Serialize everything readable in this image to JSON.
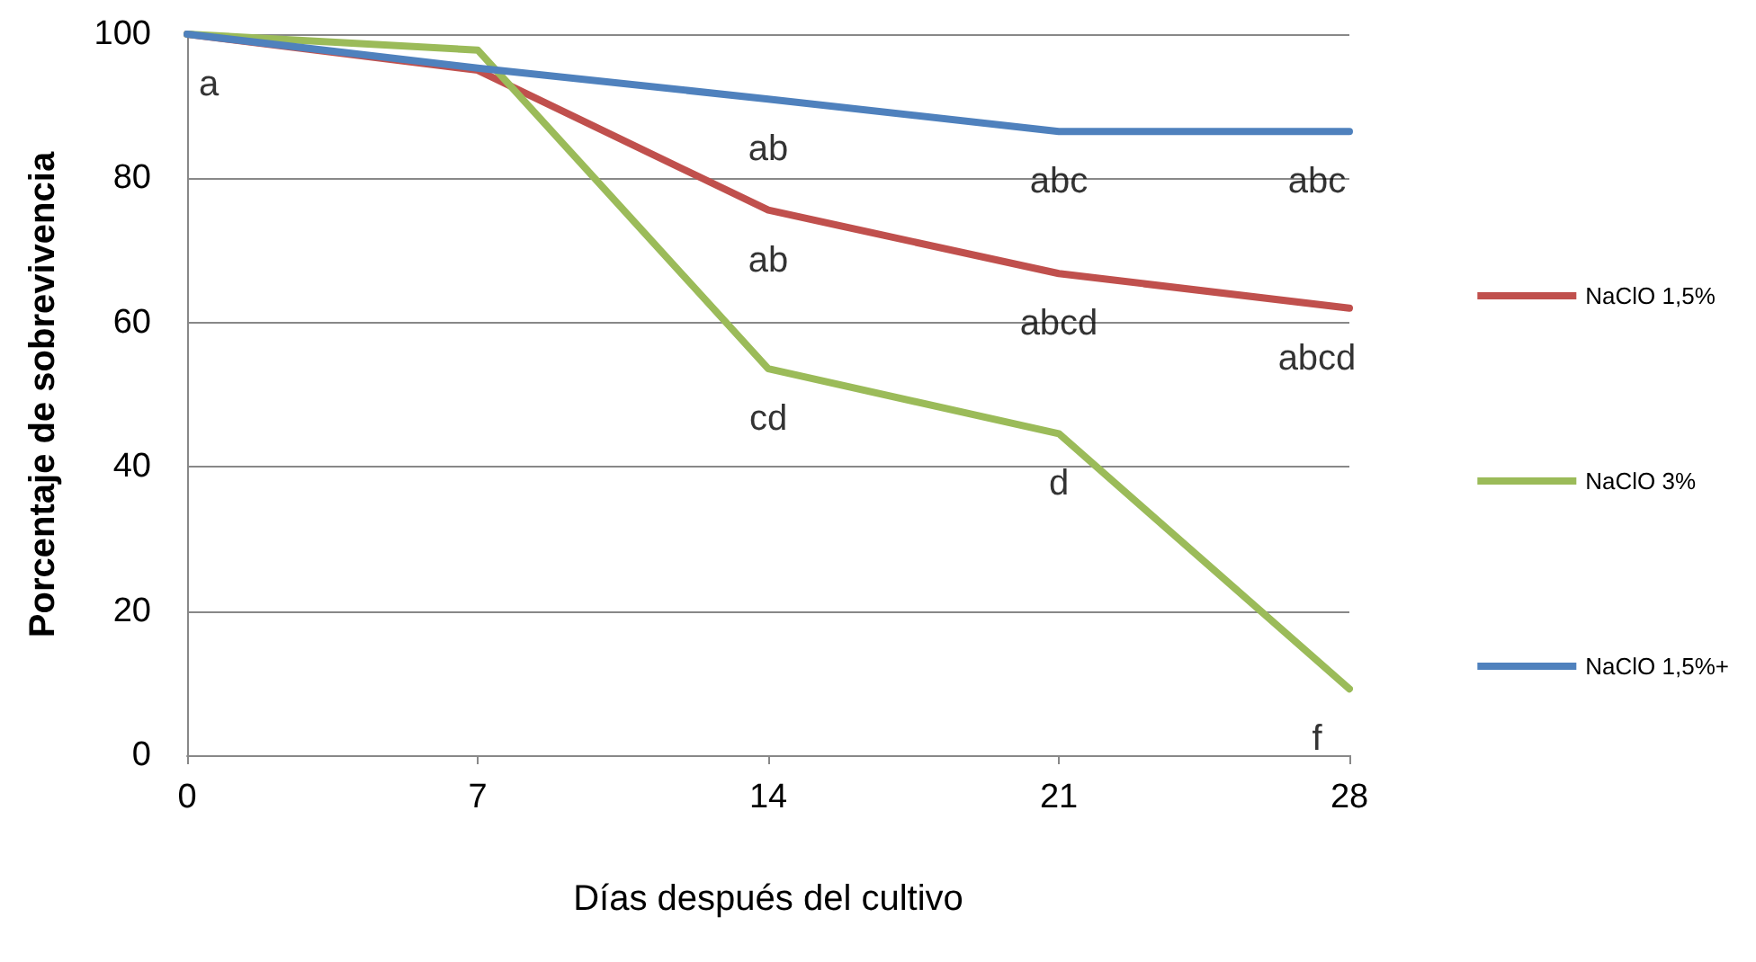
{
  "chart_data": {
    "type": "line",
    "xlabel": "Días después del cultivo",
    "ylabel": "Porcentaje de sobrevivencia",
    "x": [
      0,
      7,
      14,
      21,
      28
    ],
    "series": [
      {
        "name": "NaClO 1,5%",
        "color": "#c0504d",
        "values": [
          100,
          95,
          75.6,
          66.8,
          62
        ]
      },
      {
        "name": "NaClO 3%",
        "color": "#9bbb59",
        "values": [
          100,
          97.8,
          53.6,
          44.6,
          9.2
        ]
      },
      {
        "name": "NaClO 1,5%+",
        "color": "#4f81bd",
        "values": [
          100,
          95.3,
          91,
          86.5,
          86.5
        ]
      }
    ],
    "xlim": [
      0,
      28
    ],
    "xticks": [
      0,
      7,
      14,
      21,
      28
    ],
    "ylim": [
      0,
      100
    ],
    "yticks": [
      0,
      20,
      40,
      60,
      80,
      100
    ],
    "grid": "y",
    "legend": "right",
    "marker": "none",
    "line_style": "solid",
    "annotations": [
      {
        "text": "a",
        "x": 0,
        "y": 100
      },
      {
        "text": "ab",
        "x": 14,
        "y": 91
      },
      {
        "text": "abc",
        "x": 21,
        "y": 86.5
      },
      {
        "text": "abc",
        "x": 28,
        "y": 86.5
      },
      {
        "text": "ab",
        "x": 14,
        "y": 75.6
      },
      {
        "text": "abcd",
        "x": 21,
        "y": 66.8
      },
      {
        "text": "abcd",
        "x": 28,
        "y": 62
      },
      {
        "text": "cd",
        "x": 14,
        "y": 53.6
      },
      {
        "text": "d",
        "x": 21,
        "y": 44.6
      },
      {
        "text": "f",
        "x": 28,
        "y": 9.2
      }
    ]
  }
}
